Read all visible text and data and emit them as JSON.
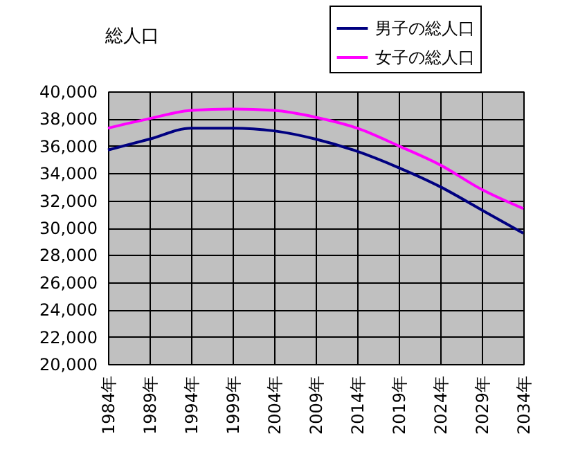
{
  "chart_data": {
    "type": "line",
    "title": "総人口",
    "categories": [
      "1984年",
      "1989年",
      "1994年",
      "1999年",
      "2004年",
      "2009年",
      "2014年",
      "2019年",
      "2024年",
      "2029年",
      "2034年"
    ],
    "series": [
      {
        "name": "男子の総人口",
        "color": "#000080",
        "values": [
          35700,
          36500,
          37300,
          37300,
          37100,
          36500,
          35600,
          34400,
          33000,
          31300,
          29600
        ]
      },
      {
        "name": "女子の総人口",
        "color": "#ff00ff",
        "values": [
          37300,
          38000,
          38600,
          38700,
          38600,
          38100,
          37300,
          36000,
          34600,
          32800,
          31400
        ]
      }
    ],
    "ylim": [
      20000,
      40000
    ],
    "yticks": [
      {
        "value": 20000,
        "label": "20,000"
      },
      {
        "value": 22000,
        "label": "22,000"
      },
      {
        "value": 24000,
        "label": "24,000"
      },
      {
        "value": 26000,
        "label": "26,000"
      },
      {
        "value": 28000,
        "label": "28,000"
      },
      {
        "value": 30000,
        "label": "30,000"
      },
      {
        "value": 32000,
        "label": "32,000"
      },
      {
        "value": 34000,
        "label": "34,000"
      },
      {
        "value": 36000,
        "label": "36,000"
      },
      {
        "value": 38000,
        "label": "38,000"
      },
      {
        "value": 40000,
        "label": "40,000"
      }
    ],
    "grid": true,
    "legend": "top right",
    "marker": "none",
    "line_style": "solid"
  }
}
